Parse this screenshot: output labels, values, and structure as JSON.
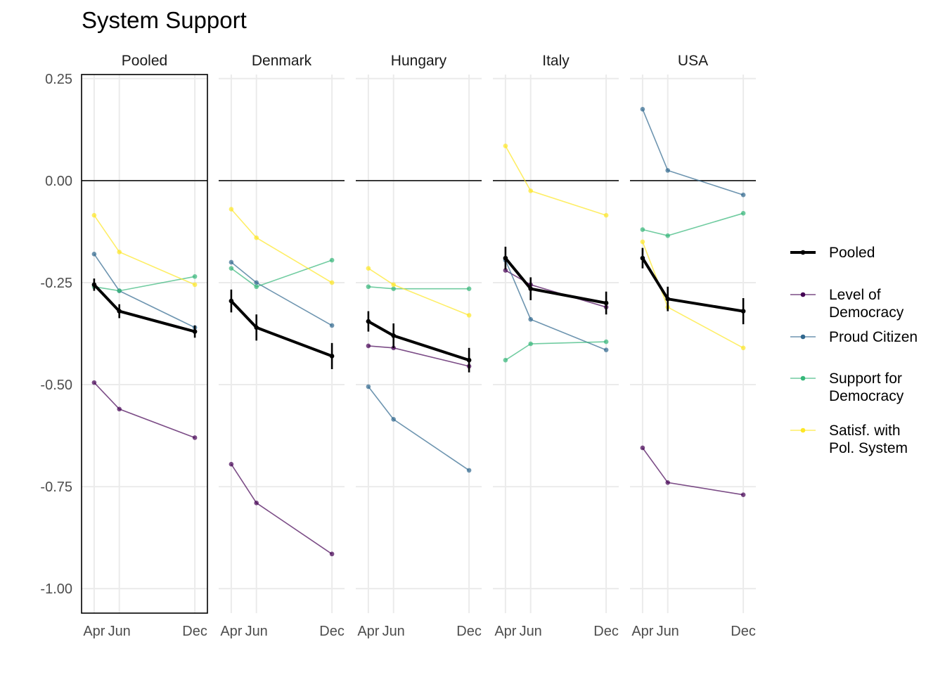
{
  "chart_data": {
    "type": "line",
    "title": "System Support",
    "panels": [
      "Pooled",
      "Denmark",
      "Hungary",
      "Italy",
      "USA"
    ],
    "highlighted_panel": "Pooled",
    "x_ticks": [
      "Apr",
      "Jun",
      "Dec"
    ],
    "x_positions": {
      "Apr": 4,
      "Jun": 6,
      "Dec": 12
    },
    "xlim": [
      3,
      13
    ],
    "ylim": [
      -1.06,
      0.26
    ],
    "y_ticks": [
      0.25,
      0.0,
      -0.25,
      -0.5,
      -0.75,
      -1.0
    ],
    "y_tick_labels": [
      "0.25",
      "0.00",
      "-0.25",
      "-0.50",
      "-0.75",
      "-1.00"
    ],
    "reference_line_y": 0,
    "grid": true,
    "legend_position": "right",
    "series": [
      {
        "key": "pooled",
        "name": "Pooled",
        "color": "#000000",
        "bold": true,
        "error_bars": true
      },
      {
        "key": "level",
        "name": "Level of\nDemocracy",
        "color": "#440154",
        "bold": false
      },
      {
        "key": "proud",
        "name": "Proud Citizen",
        "color": "#31688E",
        "bold": false
      },
      {
        "key": "support",
        "name": "Support for\nDemocracy",
        "color": "#35B779",
        "bold": false
      },
      {
        "key": "satisf",
        "name": "Satisf. with\nPol. System",
        "color": "#FDE725",
        "bold": false
      }
    ],
    "values": {
      "Pooled": {
        "pooled": [
          -0.255,
          -0.32,
          -0.37
        ],
        "pooled_err": [
          0.015,
          0.017,
          0.015
        ],
        "level": [
          -0.495,
          -0.56,
          -0.63
        ],
        "proud": [
          -0.18,
          -0.27,
          -0.36
        ],
        "support": [
          -0.26,
          -0.27,
          -0.235
        ],
        "satisf": [
          -0.085,
          -0.175,
          -0.255
        ]
      },
      "Denmark": {
        "pooled": [
          -0.295,
          -0.36,
          -0.43
        ],
        "pooled_err": [
          0.028,
          0.032,
          0.032
        ],
        "level": [
          -0.695,
          -0.79,
          -0.915
        ],
        "proud": [
          -0.2,
          -0.25,
          -0.355
        ],
        "support": [
          -0.215,
          -0.26,
          -0.195
        ],
        "satisf": [
          -0.07,
          -0.14,
          -0.25
        ]
      },
      "Hungary": {
        "pooled": [
          -0.345,
          -0.38,
          -0.44
        ],
        "pooled_err": [
          0.025,
          0.03,
          0.03
        ],
        "level": [
          -0.405,
          -0.41,
          -0.455
        ],
        "proud": [
          -0.505,
          -0.585,
          -0.71
        ],
        "support": [
          -0.26,
          -0.265,
          -0.265
        ],
        "satisf": [
          -0.215,
          -0.255,
          -0.33
        ]
      },
      "Italy": {
        "pooled": [
          -0.19,
          -0.265,
          -0.3
        ],
        "pooled_err": [
          0.028,
          0.028,
          0.028
        ],
        "level": [
          -0.22,
          -0.255,
          -0.31
        ],
        "proud": [
          -0.195,
          -0.34,
          -0.415
        ],
        "support": [
          -0.44,
          -0.4,
          -0.395
        ],
        "satisf": [
          0.085,
          -0.025,
          -0.085
        ]
      },
      "USA": {
        "pooled": [
          -0.19,
          -0.29,
          -0.32
        ],
        "pooled_err": [
          0.025,
          0.03,
          0.032
        ],
        "level": [
          -0.655,
          -0.74,
          -0.77
        ],
        "proud": [
          0.175,
          0.025,
          -0.035
        ],
        "support": [
          -0.12,
          -0.135,
          -0.08
        ],
        "satisf": [
          -0.15,
          -0.31,
          -0.41
        ]
      }
    }
  }
}
